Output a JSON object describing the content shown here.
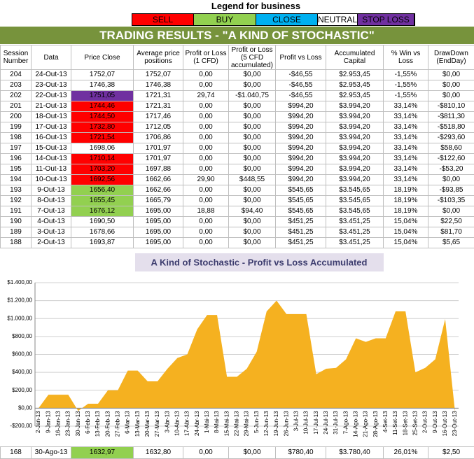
{
  "legend": {
    "title": "Legend for business",
    "items": [
      {
        "label": "SELL",
        "color": "#ff0000",
        "width": 0
      },
      {
        "label": "BUY",
        "color": "#92d050"
      },
      {
        "label": "CLOSE",
        "color": "#00b0f0"
      },
      {
        "label": "NEUTRAL",
        "color": "#ffffff"
      },
      {
        "label": "STOP LOSS",
        "color": "#7030a0"
      }
    ]
  },
  "table": {
    "title": "TRADING RESULTS - \"A KIND OF STOCHASTIC\"",
    "title_color": "#77933c",
    "header": [
      "Session Number",
      "Data",
      "Price Close",
      "Average price positions",
      "Profit or Loss (1 CFD)",
      "Profit or Loss (5 CFD accumulated)",
      "Profit vs Loss",
      "Accumulated Capital",
      "% Win vs Loss",
      "DrawDown (EndDay)"
    ],
    "rows": [
      [
        "204",
        "24-Out-13",
        "1752,07",
        "1752,07",
        "0,00",
        "$0,00",
        "-$46,55",
        "$2.953,45",
        "-1,55%",
        "$0,00"
      ],
      [
        "203",
        "23-Out-13",
        "1746,38",
        "1746,38",
        "0,00",
        "$0,00",
        "-$46,55",
        "$2.953,45",
        "-1,55%",
        "$0,00"
      ],
      [
        "202",
        "22-Out-13",
        "1751,05",
        "1721,31",
        "29,74",
        "-$1.040,75",
        "-$46,55",
        "$2.953,45",
        "-1,55%",
        "$0,00"
      ],
      [
        "201",
        "21-Out-13",
        "1744,46",
        "1721,31",
        "0,00",
        "$0,00",
        "$994,20",
        "$3.994,20",
        "33,14%",
        "-$810,10"
      ],
      [
        "200",
        "18-Out-13",
        "1744,50",
        "1717,46",
        "0,00",
        "$0,00",
        "$994,20",
        "$3.994,20",
        "33,14%",
        "-$811,30"
      ],
      [
        "199",
        "17-Out-13",
        "1732,80",
        "1712,05",
        "0,00",
        "$0,00",
        "$994,20",
        "$3.994,20",
        "33,14%",
        "-$518,80"
      ],
      [
        "198",
        "16-Out-13",
        "1721,54",
        "1706,86",
        "0,00",
        "$0,00",
        "$994,20",
        "$3.994,20",
        "33,14%",
        "-$293,60"
      ],
      [
        "197",
        "15-Out-13",
        "1698,06",
        "1701,97",
        "0,00",
        "$0,00",
        "$994,20",
        "$3.994,20",
        "33,14%",
        "$58,60"
      ],
      [
        "196",
        "14-Out-13",
        "1710,14",
        "1701,97",
        "0,00",
        "$0,00",
        "$994,20",
        "$3.994,20",
        "33,14%",
        "-$122,60"
      ],
      [
        "195",
        "11-Out-13",
        "1703,20",
        "1697,88",
        "0,00",
        "$0,00",
        "$994,20",
        "$3.994,20",
        "33,14%",
        "-$53,20"
      ],
      [
        "194",
        "10-Out-13",
        "1692,56",
        "1662,66",
        "29,90",
        "$448,55",
        "$994,20",
        "$3.994,20",
        "33,14%",
        "$0,00"
      ],
      [
        "193",
        "9-Out-13",
        "1656,40",
        "1662,66",
        "0,00",
        "$0,00",
        "$545,65",
        "$3.545,65",
        "18,19%",
        "-$93,85"
      ],
      [
        "192",
        "8-Out-13",
        "1655,45",
        "1665,79",
        "0,00",
        "$0,00",
        "$545,65",
        "$3.545,65",
        "18,19%",
        "-$103,35"
      ],
      [
        "191",
        "7-Out-13",
        "1676,12",
        "1695,00",
        "18,88",
        "$94,40",
        "$545,65",
        "$3.545,65",
        "18,19%",
        "$0,00"
      ],
      [
        "190",
        "4-Out-13",
        "1690,50",
        "1695,00",
        "0,00",
        "$0,00",
        "$451,25",
        "$3.451,25",
        "15,04%",
        "$22,50"
      ],
      [
        "189",
        "3-Out-13",
        "1678,66",
        "1695,00",
        "0,00",
        "$0,00",
        "$451,25",
        "$3.451,25",
        "15,04%",
        "$81,70"
      ],
      [
        "188",
        "2-Out-13",
        "1693,87",
        "1695,00",
        "0,00",
        "$0,00",
        "$451,25",
        "$3.451,25",
        "15,04%",
        "$5,65"
      ]
    ],
    "price_colors": [
      "#ffffff",
      "#ffffff",
      "#7030a0",
      "#ff0000",
      "#ff0000",
      "#ff0000",
      "#ff0000",
      "#ffffff",
      "#ff0000",
      "#ff0000",
      "#ff0000",
      "#92d050",
      "#92d050",
      "#92d050",
      "#ffffff",
      "#ffffff",
      "#ffffff"
    ],
    "footer_row": [
      "168",
      "30-Ago-13",
      "1632,97",
      "1632,80",
      "0,00",
      "$0,00",
      "$780,40",
      "$3.780,40",
      "26,01%",
      "$2,50"
    ],
    "footer_price_color": "#92d050"
  },
  "chart_data": {
    "type": "area",
    "title": "A Kind of Stochastic - Profit vs Loss Accumulated",
    "color": "#f5b120",
    "categories": [
      "2-Jan-13",
      "9-Jan-13",
      "16-Jan-13",
      "23-Jan-13",
      "30-Jan-13",
      "6-Feb-13",
      "13-Feb-13",
      "20-Feb-13",
      "27-Feb-13",
      "6-Mar-13",
      "13-Mar-13",
      "20-Mar-13",
      "27-Mar-13",
      "3-Abr-13",
      "10-Abr-13",
      "17-Abr-13",
      "24-Abr-13",
      "1-Mai-13",
      "8-Mai-13",
      "15-Mai-13",
      "22-Mai-13",
      "29-Mai-13",
      "5-Jun-13",
      "12-Jun-13",
      "19-Jun-13",
      "26-Jun-13",
      "3-Jul-13",
      "10-Jul-13",
      "17-Jul-13",
      "24-Jul-13",
      "31-Jul-13",
      "7-Ago-13",
      "14-Ago-13",
      "21-Ago-13",
      "28-Ago-13",
      "4-Set-13",
      "11-Set-13",
      "18-Set-13",
      "25-Set-13",
      "2-Out-13",
      "9-Out-13",
      "16-Out-13",
      "23-Out-13"
    ],
    "values": [
      0,
      150,
      150,
      150,
      -30,
      50,
      50,
      200,
      200,
      420,
      420,
      300,
      300,
      440,
      560,
      600,
      880,
      1040,
      1040,
      350,
      350,
      440,
      630,
      1080,
      1200,
      1050,
      1050,
      1050,
      380,
      440,
      450,
      545,
      780,
      740,
      780,
      780,
      1080,
      1080,
      400,
      451,
      545,
      994,
      -46
    ],
    "ylim": [
      -200,
      1400
    ],
    "yticks": [
      {
        "value": -200,
        "label": "-$200,00"
      },
      {
        "value": 0,
        "label": "$0,00"
      },
      {
        "value": 200,
        "label": "$200,00"
      },
      {
        "value": 400,
        "label": "$400,00"
      },
      {
        "value": 600,
        "label": "$600,00"
      },
      {
        "value": 800,
        "label": "$800,00"
      },
      {
        "value": 1000,
        "label": "$1.000,00"
      },
      {
        "value": 1200,
        "label": "$1.200,00"
      },
      {
        "value": 1400,
        "label": "$1.400,00"
      }
    ],
    "grid": true
  }
}
